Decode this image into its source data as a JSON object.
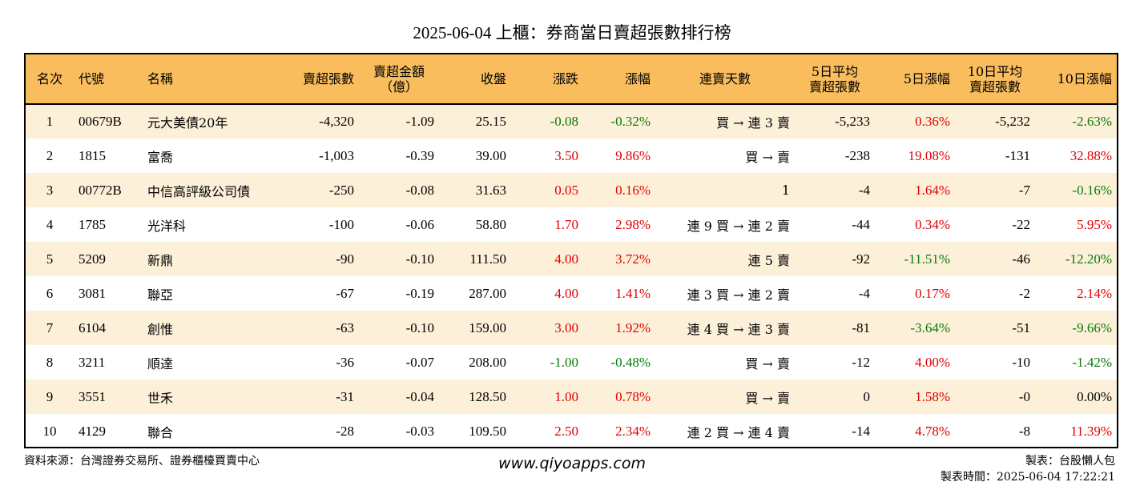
{
  "title": "2025-06-04 上櫃：券商當日賣超張數排行榜",
  "colors": {
    "header_bg": "#f9bd5e",
    "stripe_bg": "#fdf0d9",
    "up": "#e00000",
    "down": "#0a7a0a"
  },
  "headers": [
    "名次",
    "代號",
    "名稱",
    "賣超張數",
    "賣超金額\n（億）",
    "收盤",
    "漲跌",
    "漲幅",
    "連賣天數",
    "5日平均\n賣超張數",
    "5日漲幅",
    "10日平均\n賣超張數",
    "10日漲幅"
  ],
  "rows": [
    {
      "rank": "1",
      "code": "00679B",
      "name": "元大美債20年",
      "sell_lots": "-4,320",
      "sell_amount": "-1.09",
      "close": "25.15",
      "change": "-0.08",
      "change_pct": "-0.32%",
      "streak": "買 → 連 3 賣",
      "avg5": "-5,233",
      "pct5": "0.36%",
      "avg10": "-5,232",
      "pct10": "-2.63%"
    },
    {
      "rank": "2",
      "code": "1815",
      "name": "富喬",
      "sell_lots": "-1,003",
      "sell_amount": "-0.39",
      "close": "39.00",
      "change": "3.50",
      "change_pct": "9.86%",
      "streak": "買 → 賣",
      "avg5": "-238",
      "pct5": "19.08%",
      "avg10": "-131",
      "pct10": "32.88%"
    },
    {
      "rank": "3",
      "code": "00772B",
      "name": "中信高評級公司債",
      "sell_lots": "-250",
      "sell_amount": "-0.08",
      "close": "31.63",
      "change": "0.05",
      "change_pct": "0.16%",
      "streak": "1",
      "avg5": "-4",
      "pct5": "1.64%",
      "avg10": "-7",
      "pct10": "-0.16%"
    },
    {
      "rank": "4",
      "code": "1785",
      "name": "光洋科",
      "sell_lots": "-100",
      "sell_amount": "-0.06",
      "close": "58.80",
      "change": "1.70",
      "change_pct": "2.98%",
      "streak": "連 9 買 → 連 2 賣",
      "avg5": "-44",
      "pct5": "0.34%",
      "avg10": "-22",
      "pct10": "5.95%"
    },
    {
      "rank": "5",
      "code": "5209",
      "name": "新鼎",
      "sell_lots": "-90",
      "sell_amount": "-0.10",
      "close": "111.50",
      "change": "4.00",
      "change_pct": "3.72%",
      "streak": "連 5 賣",
      "avg5": "-92",
      "pct5": "-11.51%",
      "avg10": "-46",
      "pct10": "-12.20%"
    },
    {
      "rank": "6",
      "code": "3081",
      "name": "聯亞",
      "sell_lots": "-67",
      "sell_amount": "-0.19",
      "close": "287.00",
      "change": "4.00",
      "change_pct": "1.41%",
      "streak": "連 3 買 → 連 2 賣",
      "avg5": "-4",
      "pct5": "0.17%",
      "avg10": "-2",
      "pct10": "2.14%"
    },
    {
      "rank": "7",
      "code": "6104",
      "name": "創惟",
      "sell_lots": "-63",
      "sell_amount": "-0.10",
      "close": "159.00",
      "change": "3.00",
      "change_pct": "1.92%",
      "streak": "連 4 買 → 連 3 賣",
      "avg5": "-81",
      "pct5": "-3.64%",
      "avg10": "-51",
      "pct10": "-9.66%"
    },
    {
      "rank": "8",
      "code": "3211",
      "name": "順達",
      "sell_lots": "-36",
      "sell_amount": "-0.07",
      "close": "208.00",
      "change": "-1.00",
      "change_pct": "-0.48%",
      "streak": "買 → 賣",
      "avg5": "-12",
      "pct5": "4.00%",
      "avg10": "-10",
      "pct10": "-1.42%"
    },
    {
      "rank": "9",
      "code": "3551",
      "name": "世禾",
      "sell_lots": "-31",
      "sell_amount": "-0.04",
      "close": "128.50",
      "change": "1.00",
      "change_pct": "0.78%",
      "streak": "買 → 賣",
      "avg5": "0",
      "pct5": "1.58%",
      "avg10": "-0",
      "pct10": "0.00%"
    },
    {
      "rank": "10",
      "code": "4129",
      "name": "聯合",
      "sell_lots": "-28",
      "sell_amount": "-0.03",
      "close": "109.50",
      "change": "2.50",
      "change_pct": "2.34%",
      "streak": "連 2 買 → 連 4 賣",
      "avg5": "-14",
      "pct5": "4.78%",
      "avg10": "-8",
      "pct10": "11.39%"
    }
  ],
  "footer": {
    "source": "資料來源：台灣證券交易所、證券櫃檯買賣中心",
    "website": "www.qiyoapps.com",
    "maker": "製表：台股懶人包",
    "time": "製表時間：2025-06-04 17:22:21"
  }
}
